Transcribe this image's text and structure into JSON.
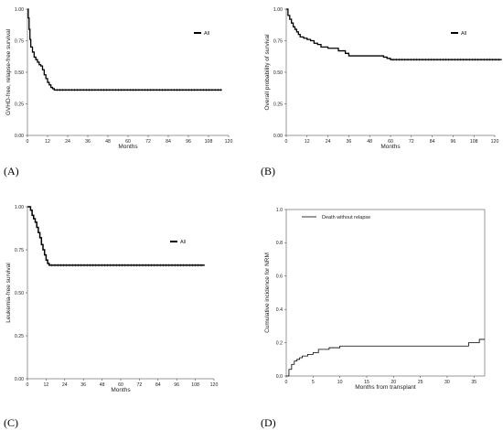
{
  "panel_labels": [
    "(A)",
    "(B)",
    "(C)",
    "(D)"
  ],
  "chart_data": [
    {
      "type": "line",
      "panel": "(A)",
      "xlabel": "Months",
      "ylabel": "GVHD-free, relapse-free survival",
      "xlim": [
        0,
        120
      ],
      "ylim": [
        0,
        1
      ],
      "xticks": [
        0,
        12,
        24,
        36,
        48,
        60,
        72,
        84,
        96,
        108,
        120
      ],
      "yticks": [
        0.0,
        0.25,
        0.5,
        0.75,
        1.0
      ],
      "ytick_labels": [
        "0.00",
        "0.25",
        "0.50",
        "0.75",
        "1.00"
      ],
      "legend_position": "top-right",
      "series": [
        {
          "name": "All",
          "x": [
            0,
            0.5,
            1,
            1.5,
            2,
            3,
            4,
            5,
            6,
            7,
            8,
            9,
            10,
            11,
            12,
            13,
            14,
            15,
            16,
            116
          ],
          "y": [
            1.0,
            0.93,
            0.84,
            0.76,
            0.7,
            0.66,
            0.62,
            0.6,
            0.58,
            0.56,
            0.55,
            0.52,
            0.48,
            0.45,
            0.42,
            0.4,
            0.38,
            0.37,
            0.36,
            0.36
          ]
        }
      ]
    },
    {
      "type": "line",
      "panel": "(B)",
      "xlabel": "Months",
      "ylabel": "Overall probability of survival",
      "xlim": [
        0,
        120
      ],
      "ylim": [
        0,
        1
      ],
      "xticks": [
        0,
        12,
        24,
        36,
        48,
        60,
        72,
        84,
        96,
        108,
        120
      ],
      "yticks": [
        0.0,
        0.25,
        0.5,
        0.75,
        1.0
      ],
      "ytick_labels": [
        "0.00",
        "0.25",
        "0.50",
        "0.75",
        "1.00"
      ],
      "legend_position": "top-right",
      "series": [
        {
          "name": "All",
          "x": [
            0,
            1,
            2,
            3,
            4,
            5,
            6,
            7,
            8,
            10,
            12,
            14,
            16,
            18,
            20,
            24,
            30,
            34,
            36,
            48,
            56,
            58,
            60,
            124
          ],
          "y": [
            1.0,
            0.95,
            0.92,
            0.89,
            0.86,
            0.84,
            0.82,
            0.8,
            0.78,
            0.77,
            0.76,
            0.75,
            0.73,
            0.72,
            0.7,
            0.69,
            0.67,
            0.65,
            0.63,
            0.63,
            0.62,
            0.61,
            0.6,
            0.6
          ]
        }
      ]
    },
    {
      "type": "line",
      "panel": "(C)",
      "xlabel": "Months",
      "ylabel": "Leukemia-free survival",
      "xlim": [
        0,
        120
      ],
      "ylim": [
        0,
        1
      ],
      "xticks": [
        0,
        12,
        24,
        36,
        48,
        60,
        72,
        84,
        96,
        108,
        120
      ],
      "yticks": [
        0.0,
        0.25,
        0.5,
        0.75,
        1.0
      ],
      "ytick_labels": [
        "0.00",
        "0.25",
        "0.50",
        "0.75",
        "1.00"
      ],
      "legend_position": "top-right",
      "series": [
        {
          "name": "All",
          "x": [
            0,
            2,
            3,
            4,
            5,
            6,
            7,
            8,
            9,
            10,
            11,
            12,
            13,
            14,
            114
          ],
          "y": [
            1.0,
            0.98,
            0.95,
            0.93,
            0.91,
            0.88,
            0.85,
            0.82,
            0.78,
            0.75,
            0.72,
            0.69,
            0.67,
            0.66,
            0.66
          ]
        }
      ]
    },
    {
      "type": "line",
      "panel": "(D)",
      "xlabel": "Months from transplant",
      "ylabel": "Cumulative incidence for NRM",
      "xlim": [
        0,
        37
      ],
      "ylim": [
        0,
        1
      ],
      "xticks": [
        0,
        5,
        10,
        15,
        20,
        25,
        30,
        35
      ],
      "yticks": [
        0.0,
        0.2,
        0.4,
        0.6,
        0.8,
        1.0
      ],
      "ytick_labels": [
        "0.0",
        "0.2",
        "0.4",
        "0.6",
        "0.8",
        "1.0"
      ],
      "legend_position": "top-left",
      "series": [
        {
          "name": "Death without relapse",
          "x": [
            0,
            0.5,
            1,
            1.5,
            2,
            2.5,
            3,
            4,
            5,
            6,
            8,
            10,
            33,
            34,
            35,
            36,
            37
          ],
          "y": [
            0.0,
            0.04,
            0.07,
            0.09,
            0.1,
            0.11,
            0.12,
            0.13,
            0.14,
            0.16,
            0.17,
            0.18,
            0.18,
            0.2,
            0.2,
            0.22,
            0.22
          ]
        }
      ]
    }
  ]
}
